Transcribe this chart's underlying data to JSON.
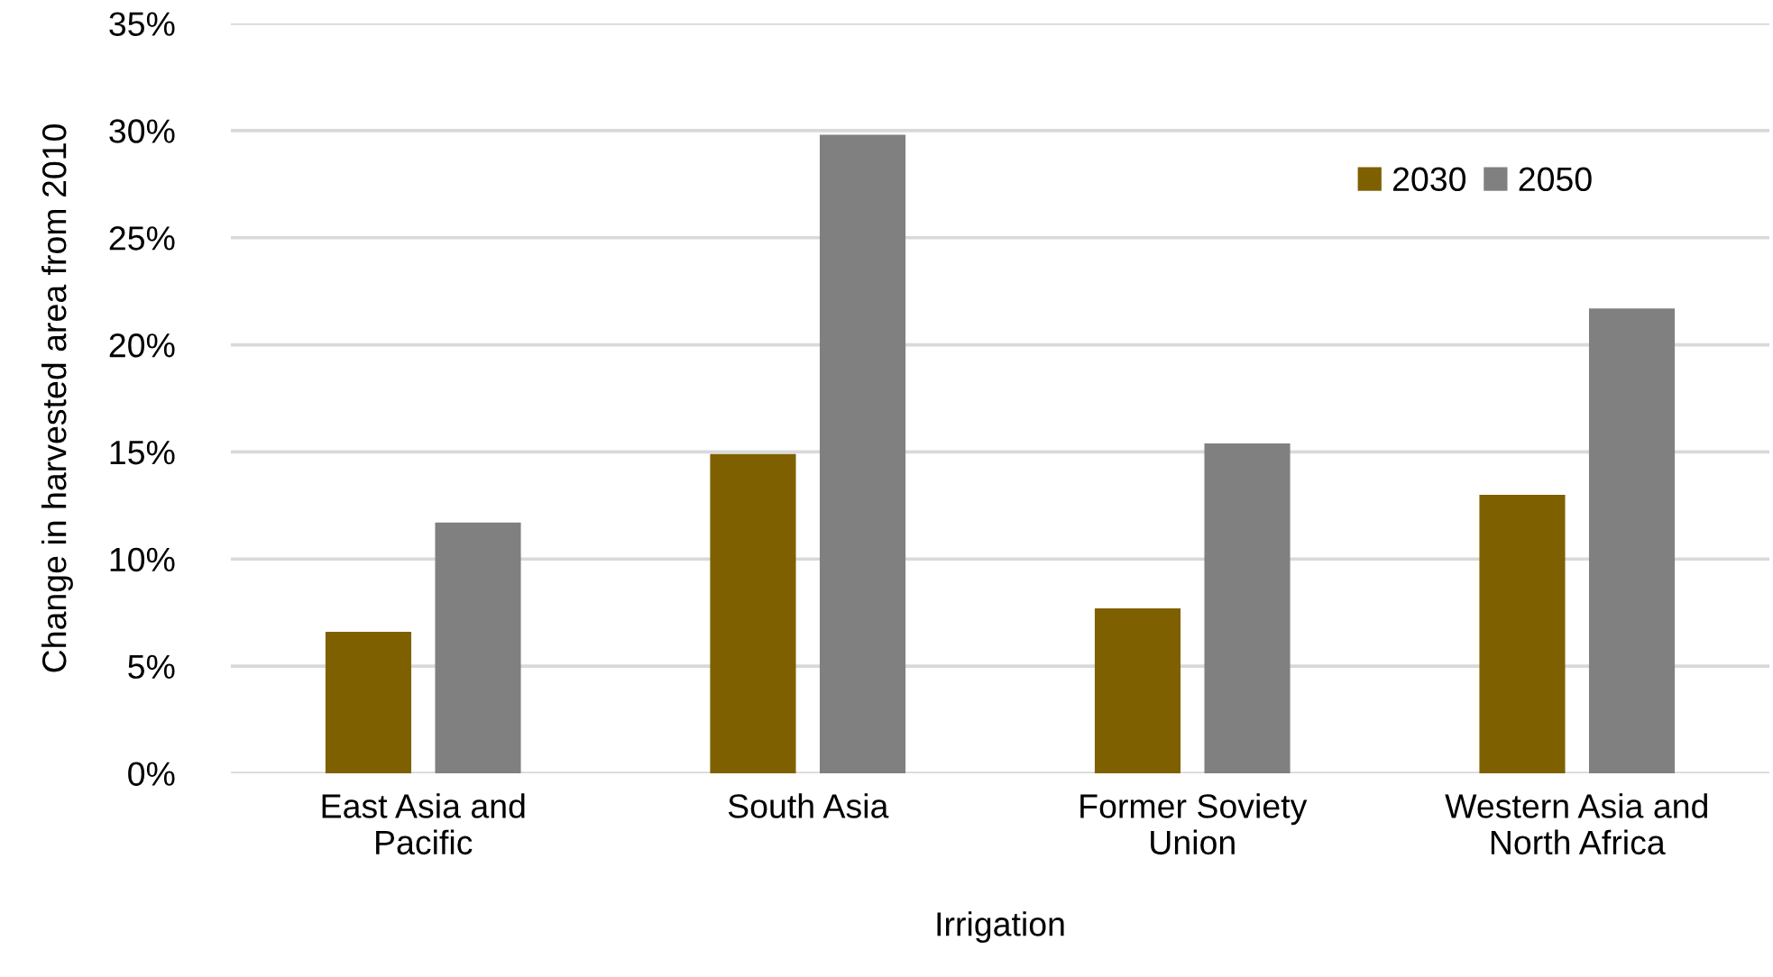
{
  "chart_data": {
    "type": "bar",
    "xlabel": "Irrigation",
    "ylabel": "Change in harvested area from 2010",
    "categories": [
      "East Asia and\nPacific",
      "South Asia",
      "Former Soviety\nUnion",
      "Western Asia and\nNorth Africa"
    ],
    "series": [
      {
        "name": "2030",
        "color": "#7f6000",
        "values": [
          6.6,
          14.9,
          7.7,
          13.0
        ]
      },
      {
        "name": "2050",
        "color": "#808080",
        "values": [
          11.7,
          29.8,
          15.4,
          21.7
        ]
      }
    ],
    "ylim": [
      0,
      35
    ],
    "yticks": [
      {
        "value": 0,
        "label": "0%"
      },
      {
        "value": 5,
        "label": "5%"
      },
      {
        "value": 10,
        "label": "10%"
      },
      {
        "value": 15,
        "label": "15%"
      },
      {
        "value": 20,
        "label": "20%"
      },
      {
        "value": 25,
        "label": "25%"
      },
      {
        "value": 30,
        "label": "30%"
      },
      {
        "value": 35,
        "label": "35%"
      }
    ],
    "grid": "y",
    "legend": "top right"
  }
}
